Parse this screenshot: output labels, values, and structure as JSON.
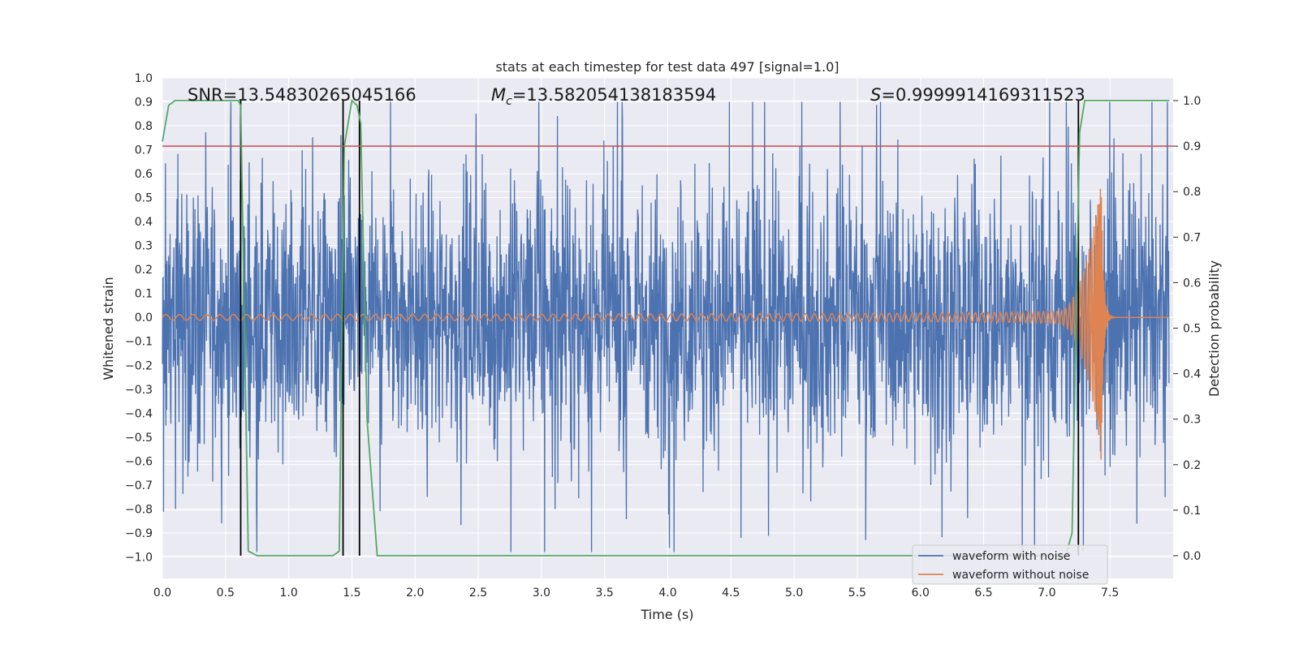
{
  "chart_data": {
    "type": "line",
    "title": "stats at each timestep for test data 497 [signal=1.0]",
    "xlabel": "Time (s)",
    "ylabel": "Whitened strain",
    "y2label": "Detection probability",
    "xlim": [
      0.0,
      8.0
    ],
    "ylim": [
      -1.09,
      1.0
    ],
    "y2lim": [
      -0.05,
      1.05
    ],
    "xticks": [
      "0.0",
      "0.5",
      "1.0",
      "1.5",
      "2.0",
      "2.5",
      "3.0",
      "3.5",
      "4.0",
      "4.5",
      "5.0",
      "5.5",
      "6.0",
      "6.5",
      "7.0",
      "7.5"
    ],
    "xtick_values": [
      0.0,
      0.5,
      1.0,
      1.5,
      2.0,
      2.5,
      3.0,
      3.5,
      4.0,
      4.5,
      5.0,
      5.5,
      6.0,
      6.5,
      7.0,
      7.5
    ],
    "yticks": [
      "1.0",
      "0.9",
      "0.8",
      "0.7",
      "0.6",
      "0.5",
      "0.4",
      "0.3",
      "0.2",
      "0.1",
      "0.0",
      "−0.1",
      "−0.2",
      "−0.3",
      "−0.4",
      "−0.5",
      "−0.6",
      "−0.7",
      "−0.8",
      "−0.9",
      "−1.0"
    ],
    "ytick_values": [
      1.0,
      0.9,
      0.8,
      0.7,
      0.6,
      0.5,
      0.4,
      0.3,
      0.2,
      0.1,
      0.0,
      -0.1,
      -0.2,
      -0.3,
      -0.4,
      -0.5,
      -0.6,
      -0.7,
      -0.8,
      -0.9,
      -1.0
    ],
    "y2ticks": [
      "1.0",
      "0.9",
      "0.8",
      "0.7",
      "0.6",
      "0.5",
      "0.4",
      "0.3",
      "0.2",
      "0.1",
      "0.0"
    ],
    "y2tick_values": [
      1.0,
      0.9,
      0.8,
      0.7,
      0.6,
      0.5,
      0.4,
      0.3,
      0.2,
      0.1,
      0.0
    ],
    "annotations": {
      "snr": "SNR=13.54830265045166",
      "mc_symbol": "M",
      "mc_sub": "c",
      "mc_value": "=13.582054138183594",
      "s_symbol": "S",
      "s_value": "=0.9999914169311523"
    },
    "series": [
      {
        "name": "waveform with noise",
        "color": "#4c72b0",
        "description": "noisy whitened strain, amplitude mostly within ±0.5 with spikes to ±0.9"
      },
      {
        "name": "waveform without noise",
        "color": "#dd8452",
        "description": "chirp signal, amplitude growing from ~0.01 to ~0.6 at merger near t=7.45 s"
      },
      {
        "name": "detection probability",
        "color": "#55a868",
        "axis": "right",
        "x": [
          0.0,
          0.05,
          0.1,
          0.6,
          0.62,
          0.68,
          0.75,
          1.35,
          1.4,
          1.44,
          1.5,
          1.54,
          1.57,
          1.62,
          1.7,
          7.15,
          7.2,
          7.26,
          7.3,
          7.97
        ],
        "values": [
          0.91,
          0.99,
          1.0,
          1.0,
          0.99,
          0.01,
          0.0,
          0.0,
          0.01,
          0.9,
          1.0,
          0.99,
          0.95,
          0.3,
          0.0,
          0.0,
          0.05,
          0.93,
          1.0,
          1.0
        ]
      }
    ],
    "threshold": {
      "value": 0.9,
      "axis": "right",
      "color": "#c44e52"
    },
    "event_markers_x": [
      0.62,
      1.43,
      1.56,
      7.25
    ],
    "legend": {
      "location": "lower-right",
      "entries": [
        "waveform with noise",
        "waveform without noise"
      ]
    },
    "grid": true,
    "colors": {
      "background": "#eaeaf2",
      "grid": "#ffffff",
      "noise": "#4c72b0",
      "signal": "#dd8452",
      "prob": "#55a868",
      "threshold": "#c44e52",
      "marker": "#000000"
    }
  }
}
